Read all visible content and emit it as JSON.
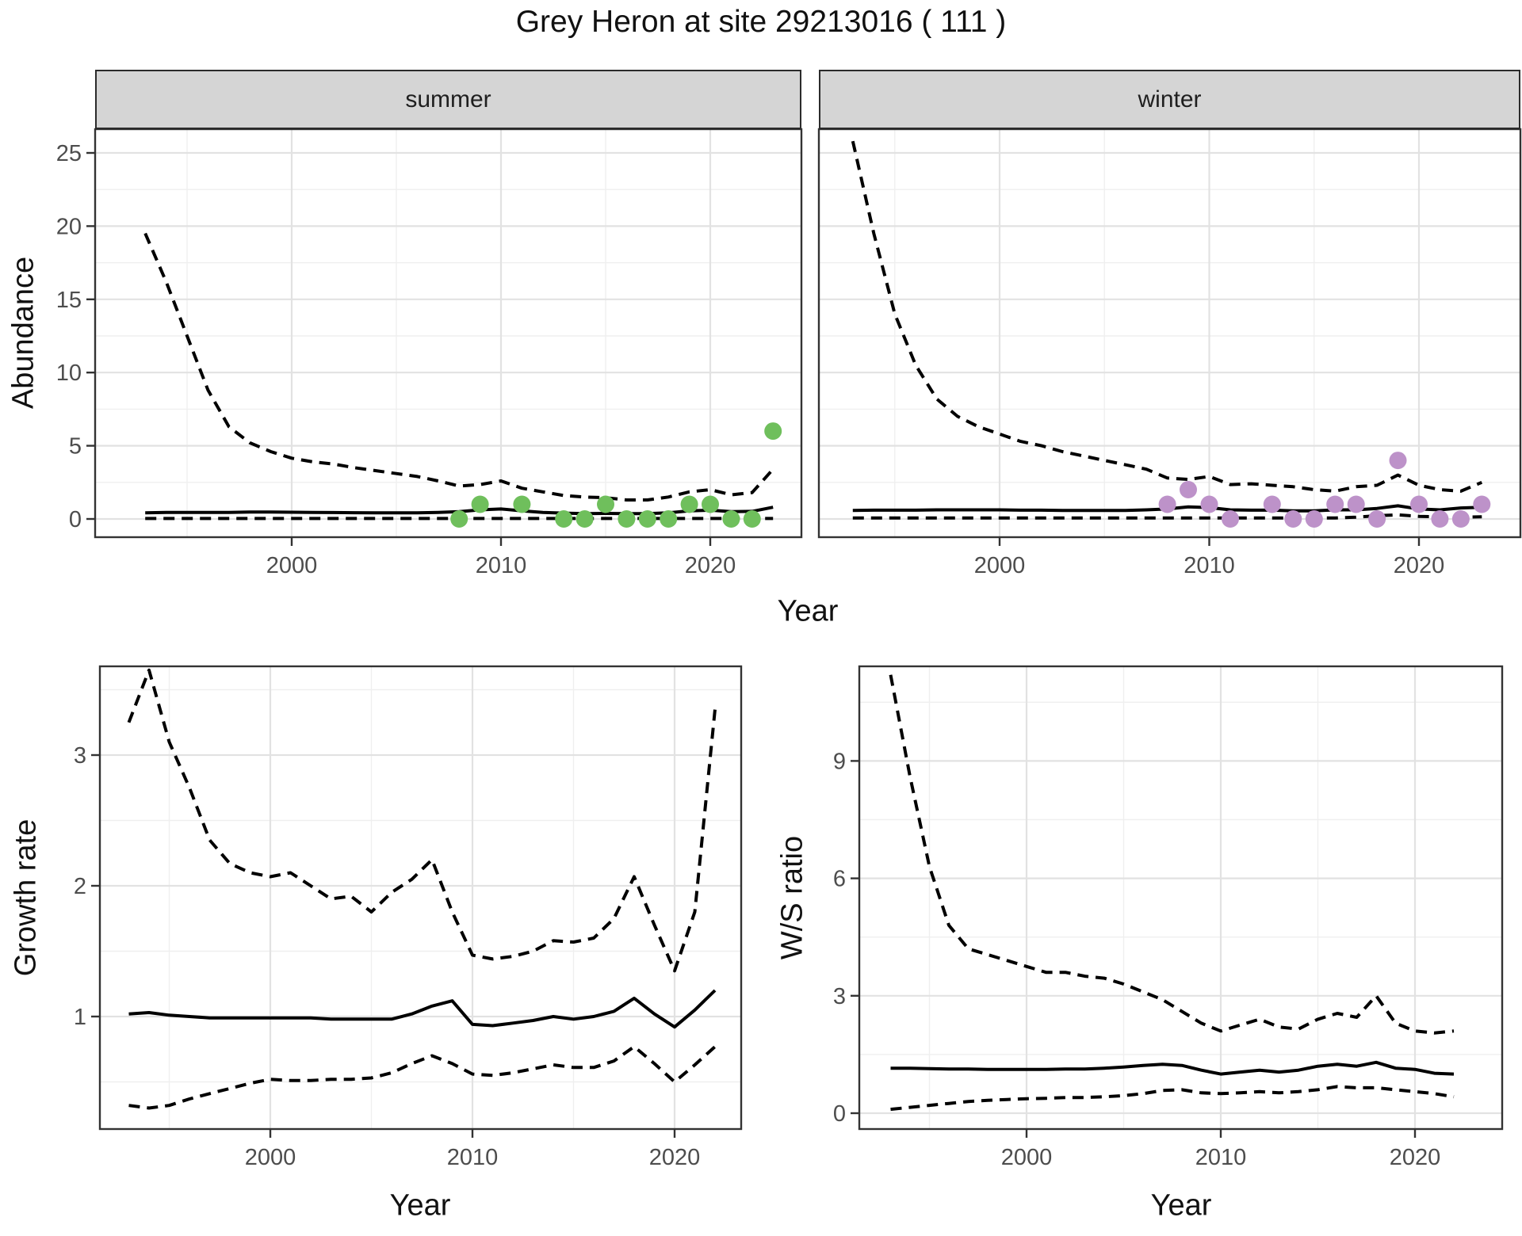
{
  "title": "Grey Heron at site 29213016 ( 111 )",
  "colors": {
    "summer_points": "#6fbf5c",
    "winter_points": "#bd92c9",
    "line": "#000000",
    "strip_bg": "#d5d5d5",
    "panel_border": "#333333",
    "grid_major": "#e2e2e2",
    "grid_minor": "#efefef",
    "axis_text": "#4d4d4d",
    "tick_mark": "#333333"
  },
  "chart_data": [
    {
      "id": "abundance",
      "type": "line",
      "title": "Abundance by season with 95% credible band",
      "xlabel": "Year",
      "ylabel": "Abundance",
      "xticks": [
        2000,
        2010,
        2020
      ],
      "xminor": [
        1995,
        2005,
        2015
      ],
      "yticks": [
        0,
        5,
        10,
        15,
        20,
        25
      ],
      "yminor": [
        2.5,
        7.5,
        12.5,
        17.5,
        22.5
      ],
      "xlim": [
        1990.6,
        2024.4
      ],
      "ylim": [
        -1.2,
        26.6
      ],
      "grid": true,
      "legend": "none",
      "years": [
        1993,
        1994,
        1995,
        1996,
        1997,
        1998,
        1999,
        2000,
        2001,
        2002,
        2003,
        2004,
        2005,
        2006,
        2007,
        2008,
        2009,
        2010,
        2011,
        2012,
        2013,
        2014,
        2015,
        2016,
        2017,
        2018,
        2019,
        2020,
        2021,
        2022,
        2023
      ],
      "facets": [
        {
          "label": "summer",
          "upper": [
            19.5,
            16.2,
            12.5,
            8.8,
            6.3,
            5.2,
            4.6,
            4.15,
            3.9,
            3.75,
            3.5,
            3.3,
            3.1,
            2.9,
            2.6,
            2.25,
            2.35,
            2.6,
            2.1,
            1.85,
            1.6,
            1.5,
            1.45,
            1.3,
            1.3,
            1.5,
            1.85,
            2.0,
            1.65,
            1.8,
            3.4
          ],
          "median": [
            0.42,
            0.45,
            0.45,
            0.45,
            0.45,
            0.47,
            0.47,
            0.46,
            0.45,
            0.44,
            0.43,
            0.42,
            0.42,
            0.42,
            0.45,
            0.5,
            0.62,
            0.68,
            0.55,
            0.45,
            0.4,
            0.37,
            0.38,
            0.36,
            0.36,
            0.42,
            0.55,
            0.6,
            0.5,
            0.52,
            0.8
          ],
          "lower": [
            0.03,
            0.03,
            0.03,
            0.03,
            0.03,
            0.03,
            0.03,
            0.03,
            0.03,
            0.03,
            0.03,
            0.03,
            0.03,
            0.03,
            0.03,
            0.03,
            0.03,
            0.03,
            0.03,
            0.03,
            0.03,
            0.03,
            0.03,
            0.03,
            0.03,
            0.03,
            0.03,
            0.03,
            0.03,
            0.03,
            0.03
          ],
          "obs_years": [
            2008,
            2009,
            2011,
            2013,
            2014,
            2015,
            2016,
            2017,
            2018,
            2019,
            2020,
            2021,
            2022,
            2023
          ],
          "obs_values": [
            0,
            1,
            1,
            0,
            0,
            1,
            0,
            0,
            0,
            1,
            1,
            0,
            0,
            6
          ]
        },
        {
          "label": "winter",
          "upper": [
            25.8,
            19.5,
            14.0,
            10.5,
            8.2,
            7.0,
            6.3,
            5.8,
            5.3,
            5.0,
            4.6,
            4.3,
            4.0,
            3.7,
            3.4,
            2.8,
            2.7,
            2.9,
            2.35,
            2.4,
            2.3,
            2.2,
            2.0,
            1.9,
            2.2,
            2.3,
            3.0,
            2.3,
            2.0,
            1.9,
            2.5
          ],
          "median": [
            0.58,
            0.6,
            0.6,
            0.6,
            0.62,
            0.62,
            0.62,
            0.62,
            0.6,
            0.6,
            0.58,
            0.58,
            0.58,
            0.58,
            0.62,
            0.68,
            0.82,
            0.78,
            0.62,
            0.6,
            0.6,
            0.55,
            0.55,
            0.62,
            0.62,
            0.72,
            0.9,
            0.68,
            0.62,
            0.75,
            0.8
          ],
          "lower": [
            0.07,
            0.07,
            0.07,
            0.07,
            0.07,
            0.07,
            0.07,
            0.07,
            0.07,
            0.07,
            0.07,
            0.07,
            0.07,
            0.07,
            0.07,
            0.07,
            0.07,
            0.07,
            0.07,
            0.07,
            0.07,
            0.07,
            0.07,
            0.07,
            0.12,
            0.22,
            0.28,
            0.18,
            0.15,
            0.12,
            0.15
          ],
          "obs_years": [
            2008,
            2009,
            2010,
            2011,
            2013,
            2014,
            2015,
            2016,
            2017,
            2018,
            2019,
            2020,
            2021,
            2022,
            2023
          ],
          "obs_values": [
            1,
            2,
            1,
            0,
            1,
            0,
            0,
            1,
            1,
            0,
            4,
            1,
            0,
            0,
            1
          ]
        }
      ]
    },
    {
      "id": "growth_rate",
      "type": "line",
      "title": "Growth rate with 95% credible band",
      "xlabel": "Year",
      "ylabel": "Growth rate",
      "xticks": [
        2000,
        2010,
        2020
      ],
      "xminor": [
        1995,
        2005,
        2015
      ],
      "yticks": [
        1,
        2,
        3
      ],
      "yminor": [
        0.5,
        1.5,
        2.5,
        3.5
      ],
      "xlim": [
        1991.6,
        2023.4
      ],
      "ylim": [
        0.14,
        3.68
      ],
      "grid": true,
      "legend": "none",
      "years": [
        1993,
        1994,
        1995,
        1996,
        1997,
        1998,
        1999,
        2000,
        2001,
        2002,
        2003,
        2004,
        2005,
        2006,
        2007,
        2008,
        2009,
        2010,
        2011,
        2012,
        2013,
        2014,
        2015,
        2016,
        2017,
        2018,
        2019,
        2020,
        2021,
        2022
      ],
      "upper": [
        3.25,
        3.65,
        3.1,
        2.75,
        2.35,
        2.17,
        2.1,
        2.07,
        2.1,
        2.0,
        1.9,
        1.92,
        1.8,
        1.95,
        2.05,
        2.2,
        1.8,
        1.47,
        1.44,
        1.46,
        1.5,
        1.58,
        1.57,
        1.6,
        1.75,
        2.07,
        1.7,
        1.35,
        1.8,
        3.35
      ],
      "median": [
        1.02,
        1.03,
        1.01,
        1.0,
        0.99,
        0.99,
        0.99,
        0.99,
        0.99,
        0.99,
        0.98,
        0.98,
        0.98,
        0.98,
        1.02,
        1.08,
        1.12,
        0.94,
        0.93,
        0.95,
        0.97,
        1.0,
        0.98,
        1.0,
        1.04,
        1.14,
        1.02,
        0.92,
        1.05,
        1.2
      ],
      "lower": [
        0.32,
        0.3,
        0.32,
        0.37,
        0.41,
        0.45,
        0.49,
        0.52,
        0.51,
        0.51,
        0.52,
        0.52,
        0.53,
        0.57,
        0.64,
        0.7,
        0.64,
        0.56,
        0.55,
        0.57,
        0.6,
        0.63,
        0.61,
        0.61,
        0.66,
        0.77,
        0.64,
        0.5,
        0.63,
        0.77
      ]
    },
    {
      "id": "ws_ratio",
      "type": "line",
      "title": "Winter/Summer ratio with 95% credible band",
      "xlabel": "Year",
      "ylabel": "W/S ratio",
      "xticks": [
        2000,
        2010,
        2020
      ],
      "xminor": [
        1995,
        2005,
        2015
      ],
      "yticks": [
        0,
        3,
        6,
        9
      ],
      "yminor": [
        1.5,
        4.5,
        7.5,
        10.5
      ],
      "xlim": [
        1991.4,
        2024.6
      ],
      "ylim": [
        -0.4,
        11.4
      ],
      "grid": true,
      "legend": "none",
      "years": [
        1993,
        1994,
        1995,
        1996,
        1997,
        1998,
        1999,
        2000,
        2001,
        2002,
        2003,
        2004,
        2005,
        2006,
        2007,
        2008,
        2009,
        2010,
        2011,
        2012,
        2013,
        2014,
        2015,
        2016,
        2017,
        2018,
        2019,
        2020,
        2021,
        2022
      ],
      "upper": [
        11.2,
        8.6,
        6.3,
        4.8,
        4.2,
        4.05,
        3.9,
        3.75,
        3.6,
        3.6,
        3.5,
        3.45,
        3.3,
        3.1,
        2.9,
        2.6,
        2.3,
        2.1,
        2.25,
        2.4,
        2.2,
        2.15,
        2.4,
        2.55,
        2.45,
        3.0,
        2.3,
        2.1,
        2.05,
        2.1
      ],
      "median": [
        1.15,
        1.15,
        1.14,
        1.13,
        1.13,
        1.12,
        1.12,
        1.12,
        1.12,
        1.13,
        1.13,
        1.15,
        1.18,
        1.22,
        1.25,
        1.22,
        1.1,
        1.0,
        1.05,
        1.1,
        1.05,
        1.1,
        1.2,
        1.25,
        1.2,
        1.3,
        1.15,
        1.12,
        1.02,
        1.0
      ],
      "lower": [
        0.1,
        0.15,
        0.2,
        0.25,
        0.3,
        0.33,
        0.35,
        0.37,
        0.38,
        0.4,
        0.4,
        0.42,
        0.45,
        0.5,
        0.58,
        0.6,
        0.52,
        0.5,
        0.52,
        0.55,
        0.52,
        0.55,
        0.6,
        0.68,
        0.65,
        0.65,
        0.6,
        0.55,
        0.5,
        0.42
      ]
    }
  ]
}
